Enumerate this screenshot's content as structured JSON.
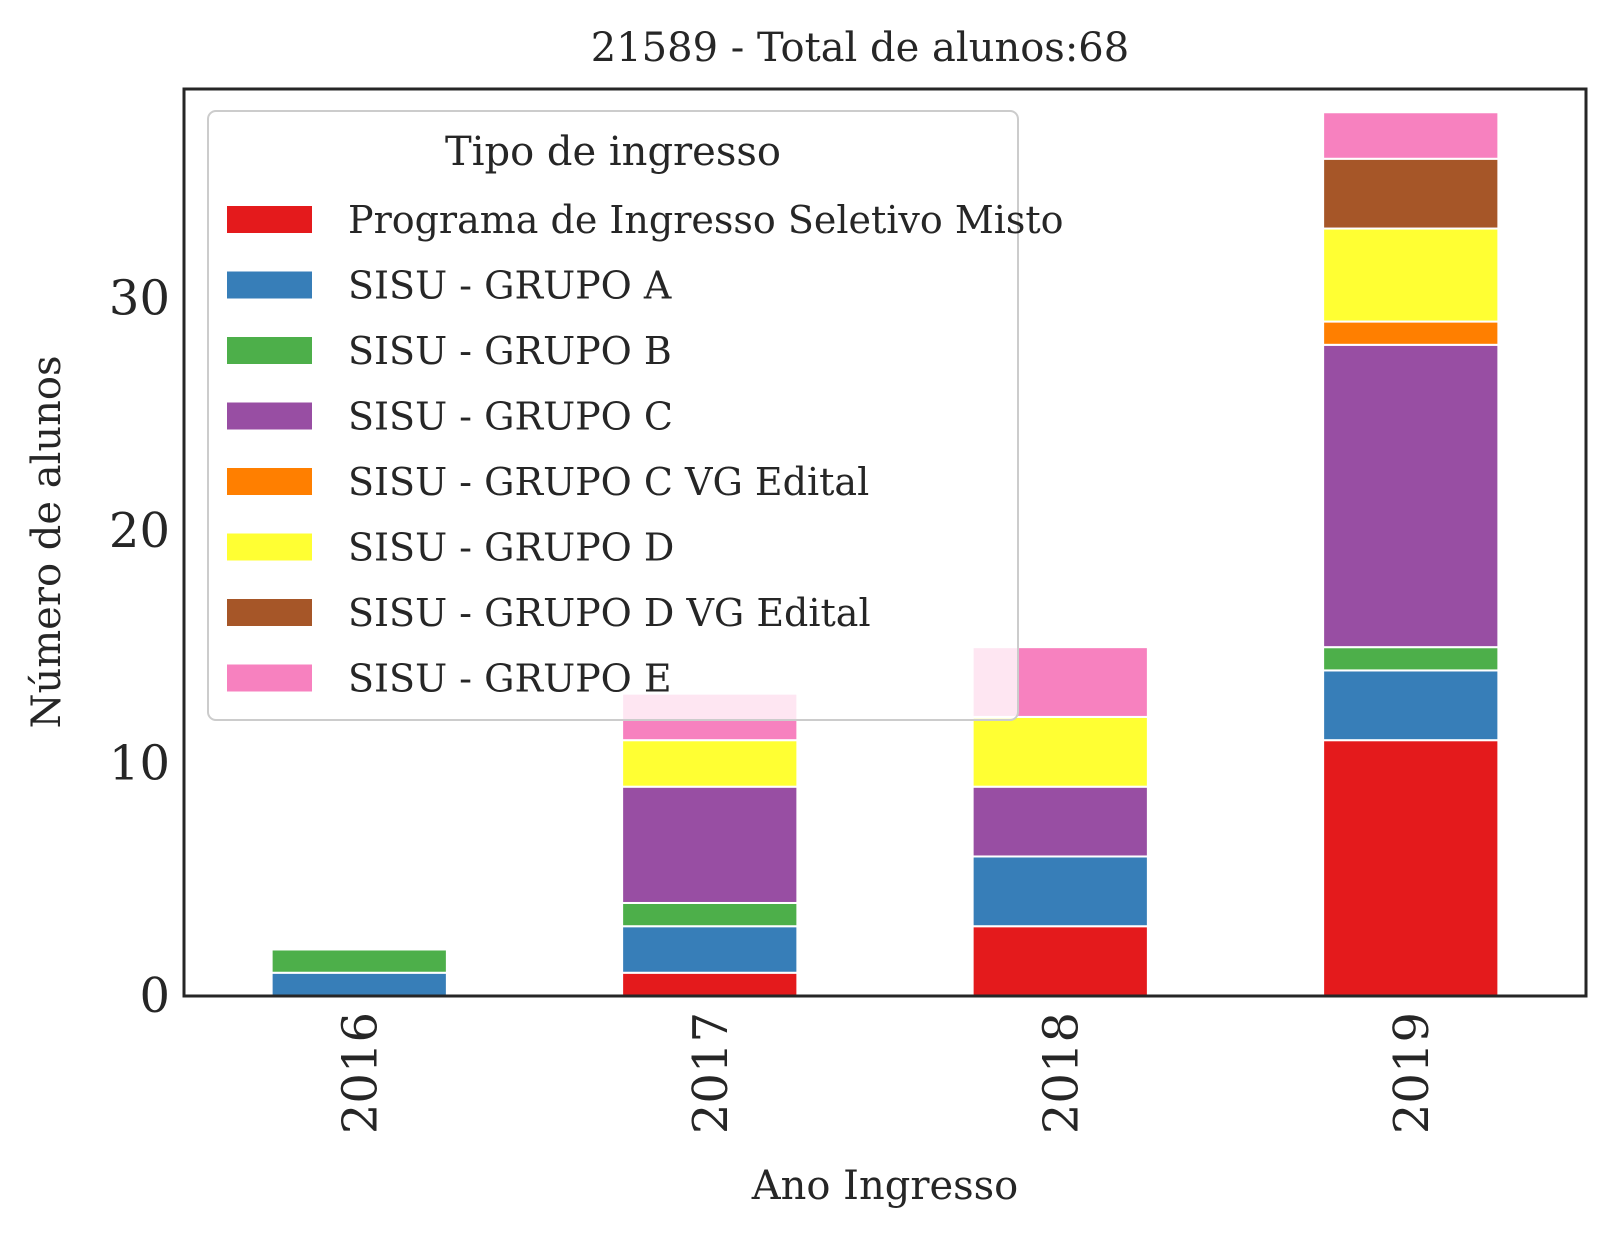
{
  "chart_data": {
    "type": "bar",
    "stacked": true,
    "title": "21589 - Total de alunos:68",
    "xlabel": "Ano Ingresso",
    "ylabel": "Número de alunos",
    "categories": [
      "2016",
      "2017",
      "2018",
      "2019"
    ],
    "ylim": [
      0,
      39
    ],
    "yticks": [
      0,
      10,
      20,
      30
    ],
    "grid": false,
    "legend": {
      "title": "Tipo de ingresso",
      "placement": "upper-left"
    },
    "series": [
      {
        "name": "Programa de Ingresso Seletivo Misto",
        "color": "#e41a1c",
        "values": [
          0,
          1,
          3,
          11
        ]
      },
      {
        "name": "SISU - GRUPO A",
        "color": "#377eb8",
        "values": [
          1,
          2,
          3,
          3
        ]
      },
      {
        "name": "SISU - GRUPO B",
        "color": "#4daf4a",
        "values": [
          1,
          1,
          0,
          1
        ]
      },
      {
        "name": "SISU - GRUPO C",
        "color": "#984ea3",
        "values": [
          0,
          5,
          3,
          13
        ]
      },
      {
        "name": "SISU - GRUPO C VG Edital",
        "color": "#ff7f00",
        "values": [
          0,
          0,
          0,
          1
        ]
      },
      {
        "name": "SISU - GRUPO D",
        "color": "#ffff33",
        "values": [
          0,
          2,
          3,
          4
        ]
      },
      {
        "name": "SISU - GRUPO D VG Edital",
        "color": "#a65628",
        "values": [
          0,
          0,
          0,
          3
        ]
      },
      {
        "name": "SISU - GRUPO E",
        "color": "#f781bf",
        "values": [
          0,
          2,
          3,
          2
        ]
      }
    ]
  }
}
